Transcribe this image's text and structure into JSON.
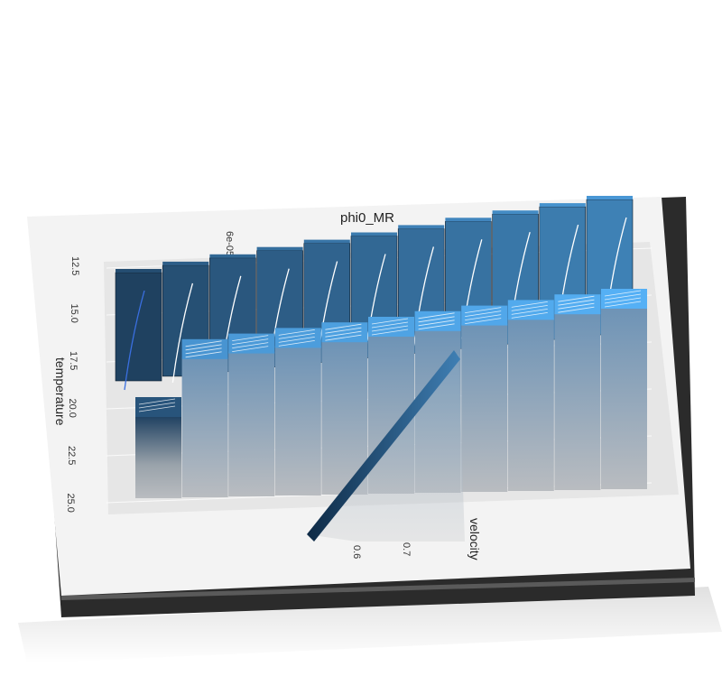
{
  "chart_data": {
    "type": "heatmap",
    "render_style": "3d-extruded-tiles",
    "title": "phi0_MR",
    "xlabel": "velocity",
    "ylabel": "temperature",
    "x_ticks": [
      "0.6",
      "0.7"
    ],
    "y_ticks": [
      "12.5",
      "15.0",
      "17.5",
      "20.0",
      "22.5",
      "25.0"
    ],
    "legend_ticks": [
      "6e-05"
    ],
    "color_low": "#0f2238",
    "color_high": "#56b1f7",
    "tiles_back_row": [
      0.3,
      0.42,
      0.48,
      0.53,
      0.58,
      0.62,
      0.66,
      0.7,
      0.74,
      0.78,
      0.82
    ],
    "tiles_front_row": [
      0.35,
      0.8,
      0.84,
      0.86,
      0.88,
      0.9,
      0.92,
      0.93,
      0.95,
      0.97,
      0.99
    ],
    "grid": true
  }
}
